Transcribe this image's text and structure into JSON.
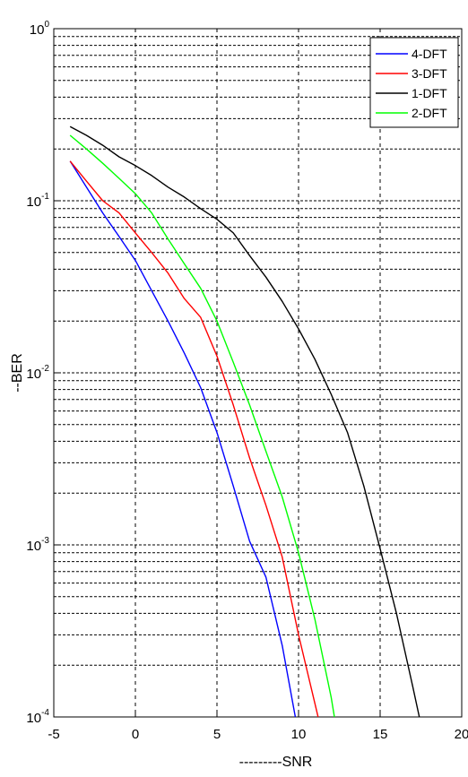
{
  "chart_data": {
    "type": "line",
    "title": "",
    "xlabel": "---------SNR",
    "ylabel": "--BER",
    "xlim": [
      -5,
      20
    ],
    "ylim": [
      0.0001,
      1
    ],
    "yscale": "log",
    "grid": true,
    "legend_position": "top-right",
    "x_ticks": [
      "-5",
      "0",
      "5",
      "10",
      "15",
      "20"
    ],
    "y_ticks": [
      {
        "base": "10",
        "exp": "0"
      },
      {
        "base": "10",
        "exp": "-1"
      },
      {
        "base": "10",
        "exp": "-2"
      },
      {
        "base": "10",
        "exp": "-3"
      },
      {
        "base": "10",
        "exp": "-4"
      }
    ],
    "series": [
      {
        "name": "4-DFT",
        "color": "#0000ff",
        "points": [
          [
            -4,
            0.17
          ],
          [
            -3,
            0.12
          ],
          [
            -2,
            0.085
          ],
          [
            -1,
            0.062
          ],
          [
            0,
            0.045
          ],
          [
            1,
            0.03
          ],
          [
            2,
            0.02
          ],
          [
            3,
            0.013
          ],
          [
            4,
            0.0082
          ],
          [
            5,
            0.0045
          ],
          [
            6,
            0.0022
          ],
          [
            7,
            0.00105
          ],
          [
            8,
            0.00065
          ],
          [
            9,
            0.00026
          ],
          [
            9.8,
            0.0001
          ]
        ]
      },
      {
        "name": "3-DFT",
        "color": "#ff0000",
        "points": [
          [
            -4,
            0.17
          ],
          [
            -3,
            0.13
          ],
          [
            -2,
            0.1
          ],
          [
            -1,
            0.085
          ],
          [
            0,
            0.065
          ],
          [
            1,
            0.05
          ],
          [
            2,
            0.038
          ],
          [
            3,
            0.027
          ],
          [
            4,
            0.021
          ],
          [
            5,
            0.0125
          ],
          [
            6,
            0.0065
          ],
          [
            7,
            0.0032
          ],
          [
            8,
            0.0017
          ],
          [
            9,
            0.00085
          ],
          [
            10,
            0.0003
          ],
          [
            11,
            0.00012
          ],
          [
            11.2,
            0.0001
          ]
        ]
      },
      {
        "name": "1-DFT",
        "color": "#000000",
        "points": [
          [
            -4,
            0.27
          ],
          [
            -3,
            0.24
          ],
          [
            -2,
            0.21
          ],
          [
            -1,
            0.18
          ],
          [
            0,
            0.16
          ],
          [
            1,
            0.14
          ],
          [
            2,
            0.12
          ],
          [
            3,
            0.105
          ],
          [
            4,
            0.09
          ],
          [
            5,
            0.078
          ],
          [
            6,
            0.065
          ],
          [
            7,
            0.048
          ],
          [
            8,
            0.036
          ],
          [
            9,
            0.026
          ],
          [
            10,
            0.018
          ],
          [
            11,
            0.012
          ],
          [
            12,
            0.0075
          ],
          [
            13,
            0.0045
          ],
          [
            14,
            0.0022
          ],
          [
            15,
            0.00095
          ],
          [
            16,
            0.0004
          ],
          [
            17,
            0.00015
          ],
          [
            17.4,
            0.0001
          ]
        ]
      },
      {
        "name": "2-DFT",
        "color": "#00ff00",
        "points": [
          [
            -4,
            0.24
          ],
          [
            -3,
            0.2
          ],
          [
            -2,
            0.165
          ],
          [
            -1,
            0.135
          ],
          [
            0,
            0.11
          ],
          [
            1,
            0.085
          ],
          [
            2,
            0.06
          ],
          [
            3,
            0.043
          ],
          [
            4,
            0.031
          ],
          [
            5,
            0.02
          ],
          [
            6,
            0.0115
          ],
          [
            7,
            0.0065
          ],
          [
            8,
            0.0035
          ],
          [
            9,
            0.0019
          ],
          [
            10,
            0.0009
          ],
          [
            11,
            0.00037
          ],
          [
            12,
            0.00013
          ],
          [
            12.2,
            0.0001
          ]
        ]
      }
    ]
  }
}
